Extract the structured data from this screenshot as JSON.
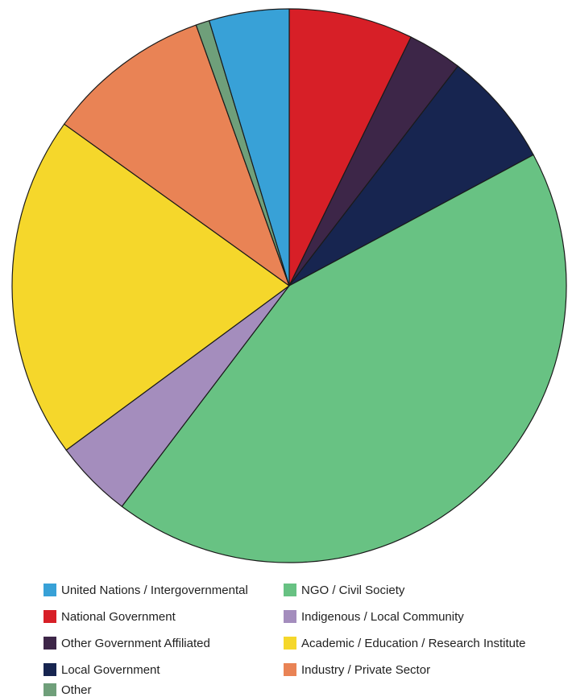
{
  "chart_data": {
    "type": "pie",
    "title": "",
    "start_angle": "12 o'clock, clockwise",
    "slices": [
      {
        "label": "National Government",
        "value": 7.3,
        "color": "#d71f27"
      },
      {
        "label": "Other Government Affiliated",
        "value": 3.2,
        "color": "#3d2648"
      },
      {
        "label": "Local Government",
        "value": 6.8,
        "color": "#172550"
      },
      {
        "label": "NGO / Civil Society",
        "value": 43.5,
        "color": "#68c283"
      },
      {
        "label": "Indigenous / Local Community",
        "value": 4.6,
        "color": "#a48dbd"
      },
      {
        "label": "Academic / Education / Research Institute",
        "value": 20.2,
        "color": "#f5d72b"
      },
      {
        "label": "Industry / Private Sector",
        "value": 9.7,
        "color": "#e98355"
      },
      {
        "label": "Other",
        "value": 0.8,
        "color": "#6f9f7a"
      },
      {
        "label": "United Nations / Intergovernmental",
        "value": 4.7,
        "color": "#38a1d7"
      }
    ],
    "legend": {
      "placement": "bottom",
      "entries": [
        {
          "label": "United Nations / Intergovernmental",
          "color": "#38a1d7"
        },
        {
          "label": "NGO / Civil Society",
          "color": "#68c283"
        },
        {
          "label": "National Government",
          "color": "#d71f27"
        },
        {
          "label": "Indigenous / Local Community",
          "color": "#a48dbd"
        },
        {
          "label": "Other Government Affiliated",
          "color": "#3d2648"
        },
        {
          "label": "Academic / Education / Research Institute",
          "color": "#f5d72b"
        },
        {
          "label": "Local Government",
          "color": "#172550"
        },
        {
          "label": "Industry / Private Sector",
          "color": "#e98355"
        },
        {
          "label": "Other",
          "color": "#6f9f7a"
        }
      ]
    }
  }
}
